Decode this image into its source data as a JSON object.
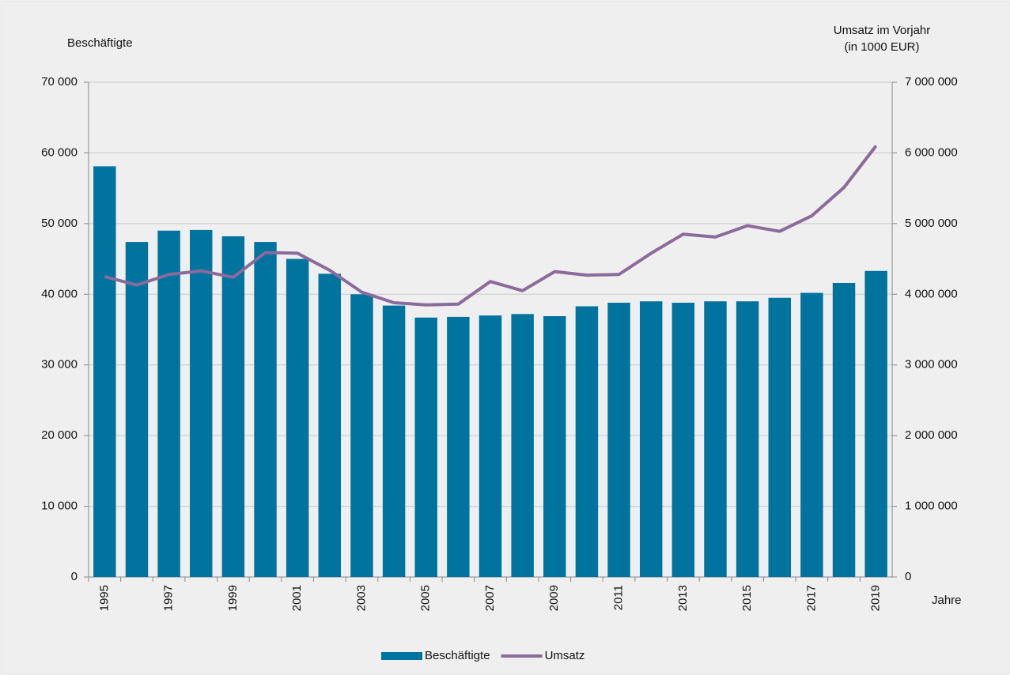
{
  "chart_data": {
    "type": "bar",
    "ylabel": "Beschäftigte",
    "y2label": [
      "Umsatz im Vorjahr",
      "(in 1000 EUR)"
    ],
    "xlabel": "Jahre",
    "categories": [
      "1995",
      null,
      "1997",
      null,
      "1999",
      null,
      "2001",
      null,
      "2003",
      null,
      "2005",
      null,
      "2007",
      null,
      "2009",
      null,
      "2011",
      null,
      "2013",
      null,
      "2015",
      null,
      "2017",
      null,
      "2019"
    ],
    "series": [
      {
        "name": "Beschäftigte",
        "type": "bar",
        "axis": "y",
        "color": "#00739f",
        "values": [
          58100,
          47400,
          49000,
          49100,
          48200,
          47400,
          45000,
          42900,
          40000,
          38400,
          36700,
          36800,
          37000,
          37200,
          36900,
          38300,
          38800,
          39000,
          38800,
          39000,
          39000,
          39500,
          40200,
          41600,
          43300
        ]
      },
      {
        "name": "Umsatz",
        "type": "line",
        "axis": "y2",
        "color": "#8a6b9b",
        "values": [
          4250000,
          4130000,
          4280000,
          4330000,
          4240000,
          4590000,
          4580000,
          4340000,
          4030000,
          3880000,
          3850000,
          3860000,
          4180000,
          4050000,
          4320000,
          4270000,
          4280000,
          4580000,
          4850000,
          4810000,
          4970000,
          4890000,
          5110000,
          5510000,
          6100000
        ]
      }
    ],
    "ylim": [
      0,
      70000
    ],
    "yticks": [
      0,
      {
        "value": 10000,
        "label": "10 000"
      },
      {
        "value": 20000,
        "label": "20 000"
      },
      {
        "value": 30000,
        "label": "30 000"
      },
      {
        "value": 40000,
        "label": "40 000"
      },
      {
        "value": 50000,
        "label": "50 000"
      },
      {
        "value": 60000,
        "label": "60 000"
      },
      {
        "value": 70000,
        "label": "70 000"
      }
    ],
    "y2lim": [
      0,
      7000000
    ],
    "y2ticks": [
      0,
      {
        "value": 1000000,
        "label": "1 000 000"
      },
      {
        "value": 2000000,
        "label": "2 000 000"
      },
      {
        "value": 3000000,
        "label": "3 000 000"
      },
      {
        "value": 4000000,
        "label": "4 000 000"
      },
      {
        "value": 5000000,
        "label": "5 000 000"
      },
      {
        "value": 6000000,
        "label": "6 000 000"
      },
      {
        "value": 7000000,
        "label": "7 000 000"
      }
    ],
    "grid": true,
    "legend": "bottom"
  }
}
